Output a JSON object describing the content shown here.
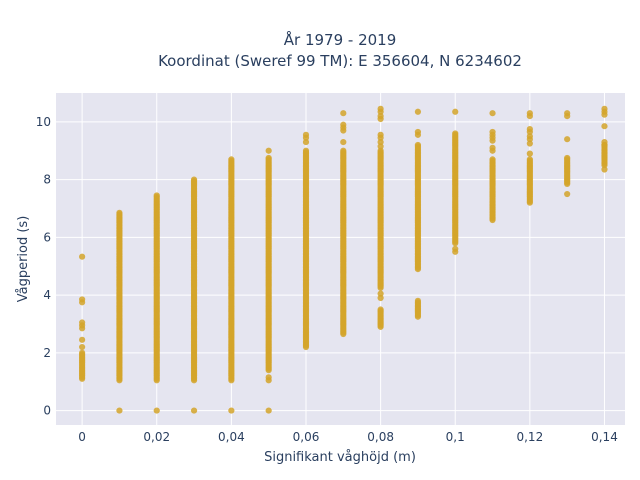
{
  "chart_data": {
    "type": "scatter",
    "title_lines": [
      "År 1979 - 2019",
      "Koordinat (Sweref 99 TM): E 356604, N 6234602"
    ],
    "xlabel": "Signifikant våghöjd (m)",
    "ylabel": "Vågperiod (s)",
    "xlim": [
      -0.007,
      0.1455
    ],
    "ylim": [
      -0.5,
      11
    ],
    "x_ticks": [
      0,
      0.02,
      0.04,
      0.06,
      0.08,
      0.1,
      0.12,
      0.14
    ],
    "x_tick_labels": [
      "0",
      "0,02",
      "0,04",
      "0,06",
      "0,08",
      "0,1",
      "0,12",
      "0,14"
    ],
    "y_ticks": [
      0,
      2,
      4,
      6,
      8,
      10
    ],
    "y_tick_labels": [
      "0",
      "2",
      "4",
      "6",
      "8",
      "10"
    ],
    "grid": true,
    "marker_color": "#d4a52a",
    "plot_bg": "#e5e5f0",
    "columns": [
      {
        "x": 0,
        "ranges": [
          [
            1.1,
            2.0
          ]
        ],
        "points": [
          5.33,
          3.85,
          3.75,
          3.05,
          2.95,
          2.85,
          2.45,
          2.2
        ]
      },
      {
        "x": 0.01,
        "ranges": [
          [
            1.05,
            6.85
          ]
        ],
        "points": [
          0.0
        ]
      },
      {
        "x": 0.02,
        "ranges": [
          [
            1.05,
            7.45
          ]
        ],
        "points": [
          0.0
        ]
      },
      {
        "x": 0.03,
        "ranges": [
          [
            1.05,
            8.0
          ]
        ],
        "points": [
          0.0
        ]
      },
      {
        "x": 0.04,
        "ranges": [
          [
            1.05,
            8.7
          ]
        ],
        "points": [
          0.0
        ]
      },
      {
        "x": 0.05,
        "ranges": [
          [
            1.4,
            8.75
          ]
        ],
        "points": [
          9.0,
          1.15,
          1.05,
          0.0
        ]
      },
      {
        "x": 0.06,
        "ranges": [
          [
            2.2,
            9.0
          ]
        ],
        "points": [
          9.45,
          9.55,
          9.3
        ]
      },
      {
        "x": 0.07,
        "ranges": [
          [
            2.65,
            9.0
          ]
        ],
        "points": [
          10.3,
          9.9,
          9.8,
          9.7,
          9.3
        ]
      },
      {
        "x": 0.08,
        "ranges": [
          [
            4.3,
            9.0
          ],
          [
            2.9,
            3.5
          ]
        ],
        "points": [
          10.45,
          10.35,
          10.2,
          10.1,
          9.55,
          9.45,
          9.3,
          9.15,
          4.25,
          4.05,
          3.9
        ]
      },
      {
        "x": 0.09,
        "ranges": [
          [
            4.9,
            9.2
          ],
          [
            3.25,
            3.8
          ]
        ],
        "points": [
          10.35,
          9.65,
          9.55
        ]
      },
      {
        "x": 0.1,
        "ranges": [
          [
            5.8,
            9.6
          ]
        ],
        "points": [
          10.35,
          5.6,
          5.5
        ]
      },
      {
        "x": 0.11,
        "ranges": [
          [
            6.6,
            8.7
          ]
        ],
        "points": [
          10.3,
          9.65,
          9.55,
          9.45,
          9.35,
          9.1,
          9.0
        ]
      },
      {
        "x": 0.12,
        "ranges": [
          [
            7.25,
            8.7
          ]
        ],
        "points": [
          10.3,
          10.2,
          9.75,
          9.65,
          9.5,
          9.4,
          9.25,
          8.9,
          7.2
        ]
      },
      {
        "x": 0.13,
        "ranges": [
          [
            7.85,
            8.75
          ]
        ],
        "points": [
          10.3,
          10.2,
          9.4,
          7.5
        ]
      },
      {
        "x": 0.14,
        "ranges": [
          [
            8.5,
            9.2
          ]
        ],
        "points": [
          10.45,
          10.35,
          10.25,
          9.85,
          9.3,
          9.2,
          8.35
        ]
      }
    ]
  }
}
